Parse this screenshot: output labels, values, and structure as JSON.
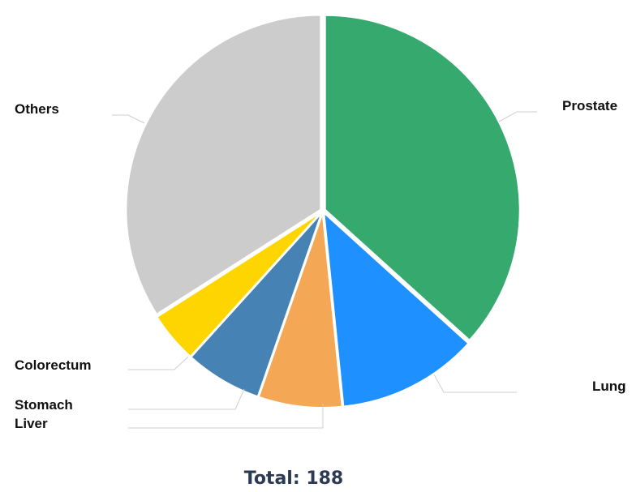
{
  "chart_data": {
    "type": "pie",
    "title": "",
    "start_angle_deg": 0,
    "slices": [
      {
        "label": "Prostate",
        "value": 69,
        "color": "#36A96F"
      },
      {
        "label": "Lung",
        "value": 22,
        "color": "#1E90FF"
      },
      {
        "label": "Liver",
        "value": 13,
        "color": "#F4A855"
      },
      {
        "label": "Stomach",
        "value": 12,
        "color": "#4682B4"
      },
      {
        "label": "Colorectum",
        "value": 8,
        "color": "#FFD500"
      },
      {
        "label": "Others",
        "value": 64,
        "color": "#CCCCCC"
      }
    ]
  },
  "total": {
    "label": "Total:",
    "value": "188"
  }
}
